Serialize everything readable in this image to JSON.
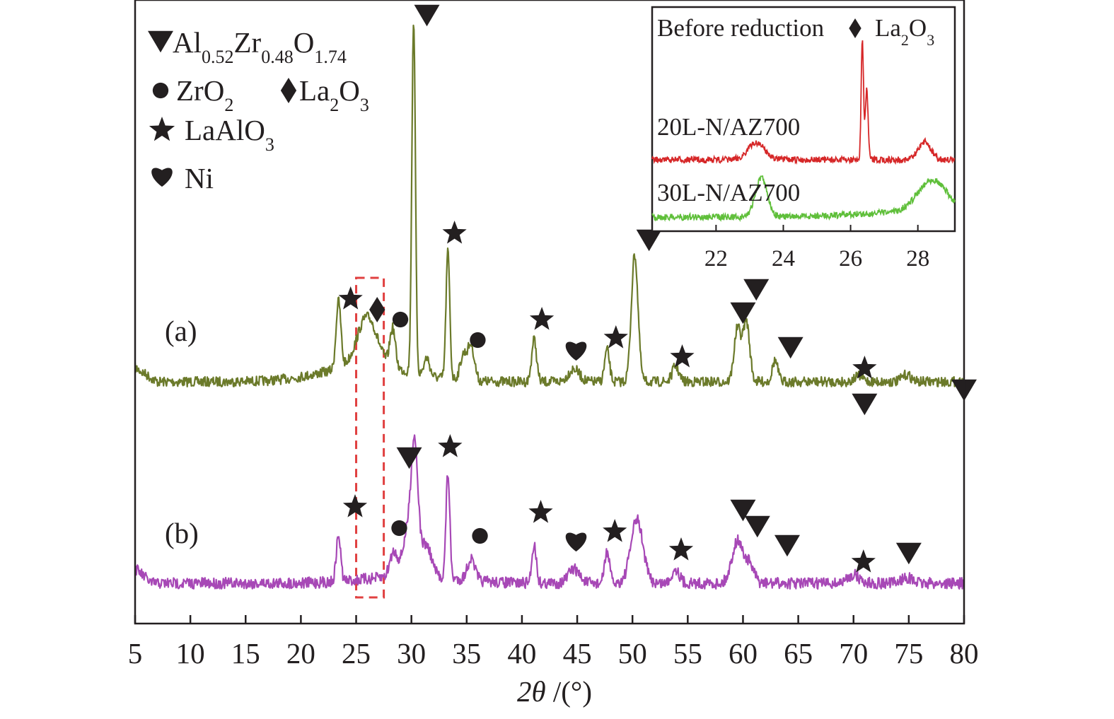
{
  "chart_data": {
    "type": "line",
    "xlabel_math": "2θ /(°)",
    "xlabel_var": "2θ",
    "xlabel_unit": " /(°)",
    "xlim": [
      5,
      80
    ],
    "xticks": [
      5,
      10,
      15,
      20,
      25,
      30,
      35,
      40,
      45,
      50,
      55,
      60,
      65,
      70,
      75,
      80
    ],
    "y_axis_ticks": false,
    "highlight_box_x": [
      25,
      27.5
    ],
    "colors": {
      "a": "#6b7a2a",
      "b": "#a748b6",
      "inset_20L": "#d62728",
      "inset_30L": "#5fbf3a",
      "box": "#e04040",
      "marker": "#231f20"
    },
    "legend": [
      {
        "symbol": "triangle-down",
        "formula": [
          [
            "Al",
            ""
          ],
          [
            "0.52",
            "sub"
          ],
          [
            "Zr",
            ""
          ],
          [
            "0.48",
            "sub"
          ],
          [
            "O",
            ""
          ],
          [
            "1.74",
            "sub"
          ]
        ]
      },
      {
        "symbol": "circle",
        "formula": [
          [
            "ZrO",
            ""
          ],
          [
            "2",
            "sub"
          ]
        ]
      },
      {
        "symbol": "diamond",
        "formula": [
          [
            "La",
            ""
          ],
          [
            "2",
            "sub"
          ],
          [
            "O",
            ""
          ],
          [
            "3",
            "sub"
          ]
        ]
      },
      {
        "symbol": "star",
        "formula": [
          [
            "LaAlO",
            ""
          ],
          [
            "3",
            "sub"
          ]
        ]
      },
      {
        "symbol": "heart",
        "formula": [
          [
            "Ni",
            ""
          ]
        ]
      }
    ],
    "series": [
      {
        "name": "(a)",
        "baseline": 540,
        "peaks": [
          {
            "x": 23.4,
            "h": 95,
            "w": 0.22
          },
          {
            "x": 26.0,
            "h": 70,
            "w": 0.9
          },
          {
            "x": 28.3,
            "h": 55,
            "w": 0.25
          },
          {
            "x": 30.2,
            "h": 500,
            "w": 0.16
          },
          {
            "x": 31.4,
            "h": 25,
            "w": 0.25
          },
          {
            "x": 33.3,
            "h": 180,
            "w": 0.17
          },
          {
            "x": 34.7,
            "h": 35,
            "w": 0.3
          },
          {
            "x": 35.4,
            "h": 50,
            "w": 0.3
          },
          {
            "x": 41.1,
            "h": 60,
            "w": 0.22
          },
          {
            "x": 44.7,
            "h": 18,
            "w": 0.5
          },
          {
            "x": 47.7,
            "h": 45,
            "w": 0.22
          },
          {
            "x": 50.2,
            "h": 180,
            "w": 0.3
          },
          {
            "x": 53.9,
            "h": 22,
            "w": 0.3
          },
          {
            "x": 59.5,
            "h": 75,
            "w": 0.3
          },
          {
            "x": 60.3,
            "h": 85,
            "w": 0.3
          },
          {
            "x": 62.9,
            "h": 30,
            "w": 0.25
          },
          {
            "x": 70.5,
            "h": 8,
            "w": 0.4
          },
          {
            "x": 74.8,
            "h": 10,
            "w": 0.4
          }
        ],
        "markers": [
          {
            "symbol": "star",
            "x": 24.5,
            "y": 423
          },
          {
            "symbol": "diamond",
            "x": 26.9,
            "y": 438
          },
          {
            "symbol": "circle",
            "x": 29.0,
            "y": 452
          },
          {
            "symbol": "triangle-down",
            "x": 31.4,
            "y": 22
          },
          {
            "symbol": "star",
            "x": 33.9,
            "y": 330
          },
          {
            "symbol": "circle",
            "x": 36.0,
            "y": 481
          },
          {
            "symbol": "star",
            "x": 41.8,
            "y": 452
          },
          {
            "symbol": "heart",
            "x": 44.9,
            "y": 493
          },
          {
            "symbol": "star",
            "x": 48.5,
            "y": 478
          },
          {
            "symbol": "triangle-down",
            "x": 51.5,
            "y": 340
          },
          {
            "symbol": "star",
            "x": 54.5,
            "y": 505
          },
          {
            "symbol": "triangle-down",
            "x": 60.0,
            "y": 443
          },
          {
            "symbol": "triangle-down",
            "x": 61.2,
            "y": 410
          },
          {
            "symbol": "triangle-down",
            "x": 64.3,
            "y": 492
          },
          {
            "symbol": "star",
            "x": 71.0,
            "y": 521
          },
          {
            "symbol": "triangle-down",
            "x": 71.0,
            "y": 572
          },
          {
            "symbol": "triangle-down",
            "x": 80.0,
            "y": 552
          }
        ]
      },
      {
        "name": "(b)",
        "baseline": 825,
        "peaks": [
          {
            "x": 23.4,
            "h": 65,
            "w": 0.2
          },
          {
            "x": 28.4,
            "h": 35,
            "w": 0.35
          },
          {
            "x": 29.7,
            "h": 65,
            "w": 0.45
          },
          {
            "x": 30.3,
            "h": 165,
            "w": 0.3
          },
          {
            "x": 31.3,
            "h": 45,
            "w": 0.5
          },
          {
            "x": 33.3,
            "h": 150,
            "w": 0.17
          },
          {
            "x": 35.4,
            "h": 30,
            "w": 0.35
          },
          {
            "x": 41.1,
            "h": 55,
            "w": 0.2
          },
          {
            "x": 44.7,
            "h": 20,
            "w": 0.5
          },
          {
            "x": 47.7,
            "h": 45,
            "w": 0.22
          },
          {
            "x": 50.4,
            "h": 90,
            "w": 0.55
          },
          {
            "x": 53.9,
            "h": 20,
            "w": 0.35
          },
          {
            "x": 59.5,
            "h": 60,
            "w": 0.5
          },
          {
            "x": 60.6,
            "h": 25,
            "w": 0.4
          },
          {
            "x": 70.0,
            "h": 12,
            "w": 0.5
          },
          {
            "x": 74.8,
            "h": 8,
            "w": 0.5
          }
        ],
        "markers": [
          {
            "symbol": "star",
            "x": 24.9,
            "y": 717
          },
          {
            "symbol": "circle",
            "x": 28.9,
            "y": 747
          },
          {
            "symbol": "triangle-down",
            "x": 29.8,
            "y": 648
          },
          {
            "symbol": "star",
            "x": 33.5,
            "y": 632
          },
          {
            "symbol": "circle",
            "x": 36.2,
            "y": 758
          },
          {
            "symbol": "star",
            "x": 41.7,
            "y": 725
          },
          {
            "symbol": "heart",
            "x": 44.9,
            "y": 763
          },
          {
            "symbol": "star",
            "x": 48.4,
            "y": 752
          },
          {
            "symbol": "star",
            "x": 54.4,
            "y": 778
          },
          {
            "symbol": "triangle-down",
            "x": 60.0,
            "y": 722
          },
          {
            "symbol": "triangle-down",
            "x": 61.3,
            "y": 745
          },
          {
            "symbol": "triangle-down",
            "x": 64.0,
            "y": 772
          },
          {
            "symbol": "star",
            "x": 70.9,
            "y": 795
          },
          {
            "symbol": "triangle-down",
            "x": 75.0,
            "y": 783
          }
        ]
      }
    ],
    "inset": {
      "title": "Before reduction",
      "xlim": [
        20.1,
        29.1
      ],
      "xticks": [
        22,
        24,
        26,
        28
      ],
      "annotation": {
        "symbol": "diamond",
        "formula": [
          [
            "La",
            ""
          ],
          [
            "2",
            "sub"
          ],
          [
            "O",
            ""
          ],
          [
            "3",
            "sub"
          ]
        ]
      },
      "series": [
        {
          "name": "20L-N/AZ700",
          "baseline": 226,
          "peaks": [
            {
              "x": 23.2,
              "h": 24,
              "w": 0.25
            },
            {
              "x": 26.35,
              "h": 166,
              "w": 0.035
            },
            {
              "x": 26.48,
              "h": 100,
              "w": 0.04
            },
            {
              "x": 28.2,
              "h": 26,
              "w": 0.18
            }
          ]
        },
        {
          "name": "30L-N/AZ700",
          "baseline": 307,
          "peaks": [
            {
              "x": 23.35,
              "h": 55,
              "w": 0.18
            },
            {
              "x": 28.45,
              "h": 48,
              "w": 0.45
            }
          ]
        }
      ]
    }
  }
}
